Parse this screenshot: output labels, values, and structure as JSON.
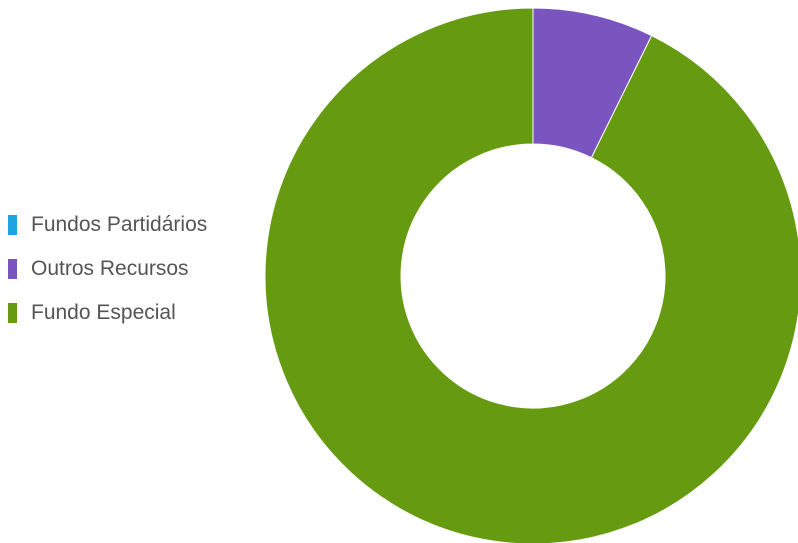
{
  "chart_data": {
    "type": "pie",
    "donut": true,
    "title": "",
    "legend_position": "left",
    "categories": [
      "Fundos Partidários",
      "Outros Recursos",
      "Fundo Especial"
    ],
    "values": [
      0.0,
      7.3,
      92.7
    ],
    "colors": [
      "#1ea5e0",
      "#7a55c0",
      "#669b11"
    ]
  }
}
